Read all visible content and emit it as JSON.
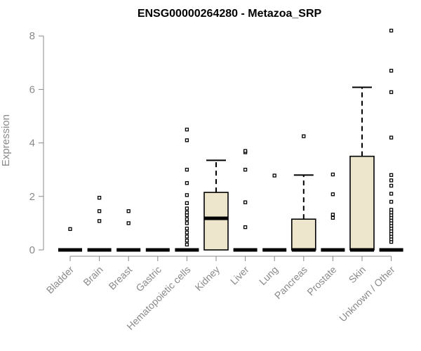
{
  "chart_data": {
    "type": "box",
    "title": "ENSG00000264280 - Metazoa_SRP",
    "xlabel": "",
    "ylabel": "Expression",
    "ylim": [
      0,
      8.3
    ],
    "yticks": [
      0,
      2,
      4,
      6,
      8
    ],
    "grid": false,
    "legend": "none",
    "colors": {
      "box_fill": "#ede6cc",
      "box_stroke": "#000000",
      "axis": "#8a8a8a",
      "title": "#000000"
    },
    "categories": [
      "Bladder",
      "Brain",
      "Breast",
      "Gastric",
      "Hematopoietic cells",
      "Kidney",
      "Liver",
      "Lung",
      "Pancreas",
      "Prostate",
      "Skin",
      "Unknown / Other"
    ],
    "boxes": [
      {
        "q1": 0,
        "median": 0,
        "q3": 0,
        "whisker_low": 0,
        "whisker_high": 0,
        "outliers": [
          0.78
        ]
      },
      {
        "q1": 0,
        "median": 0,
        "q3": 0,
        "whisker_low": 0,
        "whisker_high": 0,
        "outliers": [
          1.08,
          1.45,
          1.95
        ]
      },
      {
        "q1": 0,
        "median": 0,
        "q3": 0,
        "whisker_low": 0,
        "whisker_high": 0,
        "outliers": [
          1.0,
          1.45
        ]
      },
      {
        "q1": 0,
        "median": 0,
        "q3": 0,
        "whisker_low": 0,
        "whisker_high": 0,
        "outliers": []
      },
      {
        "q1": 0,
        "median": 0,
        "q3": 0,
        "whisker_low": 0,
        "whisker_high": 0,
        "outliers": [
          0.2,
          0.35,
          0.5,
          0.65,
          0.8,
          1.0,
          1.15,
          1.3,
          1.4,
          1.55,
          1.75,
          2.05,
          2.5,
          3.0,
          4.1,
          4.5
        ]
      },
      {
        "q1": 0,
        "median": 1.18,
        "q3": 2.15,
        "whisker_low": 0,
        "whisker_high": 3.35,
        "outliers": []
      },
      {
        "q1": 0,
        "median": 0,
        "q3": 0,
        "whisker_low": 0,
        "whisker_high": 0,
        "outliers": [
          0.85,
          1.78,
          3.0,
          3.65,
          3.7
        ]
      },
      {
        "q1": 0,
        "median": 0,
        "q3": 0,
        "whisker_low": 0,
        "whisker_high": 0,
        "outliers": [
          2.78
        ]
      },
      {
        "q1": 0,
        "median": 0,
        "q3": 1.15,
        "whisker_low": 0,
        "whisker_high": 2.8,
        "outliers": [
          4.25
        ]
      },
      {
        "q1": 0,
        "median": 0,
        "q3": 0,
        "whisker_low": 0,
        "whisker_high": 0,
        "outliers": [
          1.2,
          1.32,
          2.08,
          2.82
        ]
      },
      {
        "q1": 0,
        "median": 0,
        "q3": 3.5,
        "whisker_low": 0,
        "whisker_high": 6.08,
        "outliers": []
      },
      {
        "q1": 0,
        "median": 0,
        "q3": 0,
        "whisker_low": 0,
        "whisker_high": 0,
        "outliers": [
          0.3,
          0.4,
          0.5,
          0.6,
          0.7,
          0.8,
          0.9,
          1.0,
          1.1,
          1.2,
          1.3,
          1.4,
          1.5,
          1.8,
          2.1,
          2.4,
          2.6,
          2.8,
          4.2,
          5.9,
          6.7,
          8.2
        ]
      }
    ]
  }
}
